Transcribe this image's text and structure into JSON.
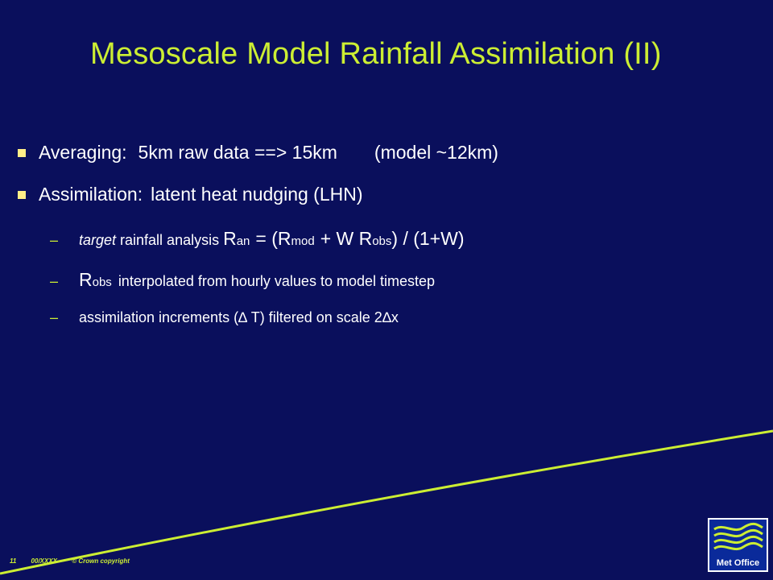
{
  "title": "Mesoscale Model Rainfall Assimilation (II)",
  "bullets": [
    {
      "label": "Averaging:",
      "text": "5km raw data ==> 15km",
      "note": "(model ~12km)"
    },
    {
      "label": "Assimilation:",
      "text": "latent heat nudging (LHN)"
    }
  ],
  "sub_bullets": {
    "line1": {
      "italic": "target",
      "text": "rainfall analysis",
      "formula": {
        "r_an": "R",
        "an": "an",
        "eq": "= (R",
        "mod": "mod",
        "mid": "+ W R",
        "obs": "obs",
        "end": ") / (1+W)"
      }
    },
    "line2": {
      "r": "R",
      "obs": "obs",
      "text": "interpolated from hourly values to model timestep"
    },
    "line3": {
      "text": "assimilation increments (∆ T)  filtered on scale 2∆x"
    }
  },
  "footer": {
    "page": "11",
    "ref": "00/XXXX",
    "copyright": "© Crown copyright"
  },
  "logo": {
    "text": "Met Office"
  },
  "colors": {
    "background": "#0a0f5c",
    "accent": "#ccee33",
    "bullet": "#ffee88"
  }
}
